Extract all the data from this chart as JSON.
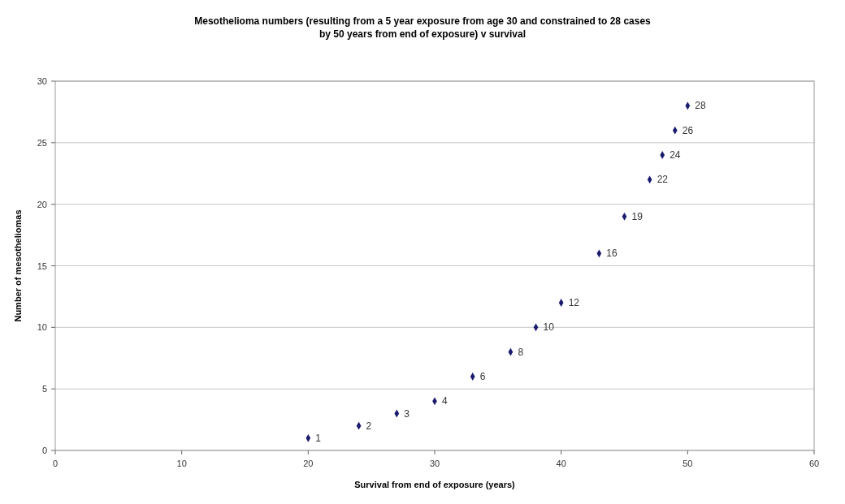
{
  "chart_data": {
    "type": "scatter",
    "title": "Mesothelioma numbers  (resulting from a 5 year exposure from age 30 and constrained to 28 cases\nby 50 years from end of exposure) v survival",
    "xlabel": "Survival from end of exposure (years)",
    "ylabel": "Number of mesotheliomas",
    "x": [
      20,
      24,
      27,
      30,
      33,
      36,
      38,
      40,
      43,
      45,
      47,
      48,
      49,
      50
    ],
    "values": [
      1,
      2,
      3,
      4,
      6,
      8,
      10,
      12,
      16,
      19,
      22,
      24,
      26,
      28
    ],
    "color": "#1a1a6e",
    "marker": "diamond",
    "data_labels": true,
    "grid": "y",
    "xlim": [
      0,
      60
    ],
    "xticks": [
      0,
      10,
      20,
      30,
      40,
      50,
      60
    ],
    "ylim": [
      0,
      30
    ],
    "yticks": [
      0,
      5,
      10,
      15,
      20,
      25,
      30
    ]
  }
}
